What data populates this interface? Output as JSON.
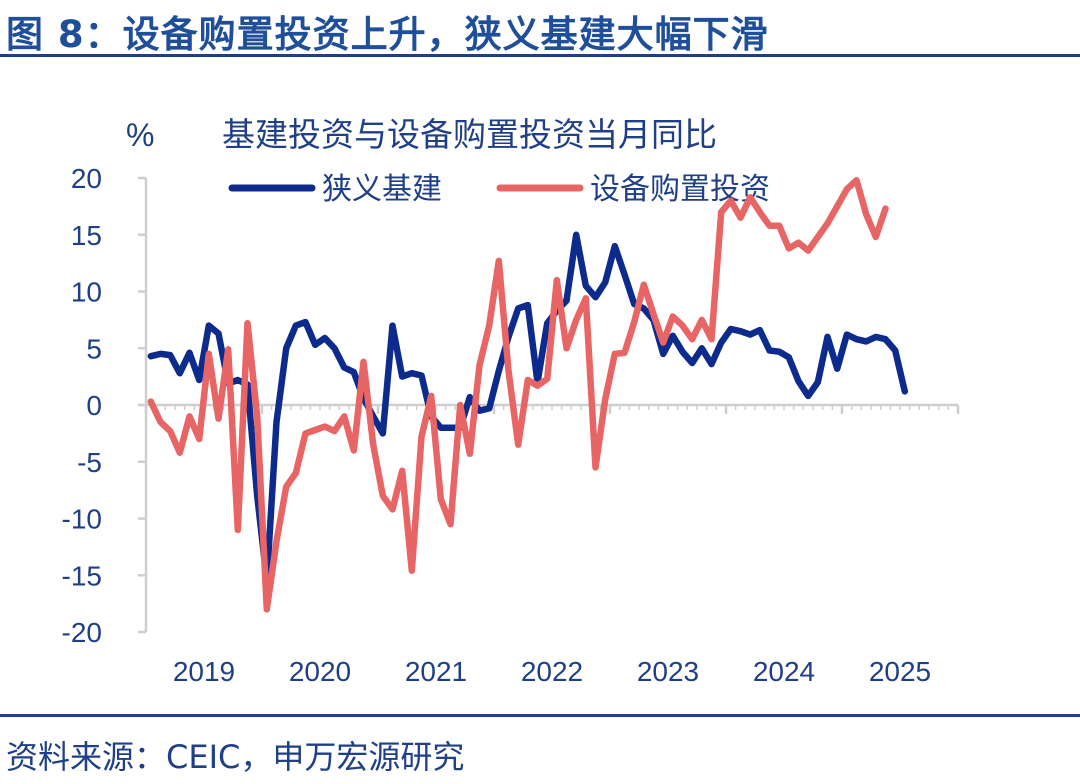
{
  "figure": {
    "title": "图 8：设备购置投资上升，狭义基建大幅下滑",
    "source": "资料来源：CEIC，申万宏源研究"
  },
  "chart_data": {
    "type": "line",
    "title": "基建投资与设备购置投资当月同比",
    "ylabel": "%",
    "xlabel": "",
    "ylim": [
      -20,
      20
    ],
    "yticks": [
      "20",
      "15",
      "10",
      "5",
      "0",
      "-5",
      "-10",
      "-15",
      "-20"
    ],
    "xticks": [
      "2019",
      "2020",
      "2021",
      "2022",
      "2023",
      "2024",
      "2025"
    ],
    "legend_position": "top",
    "grid": false,
    "colors": {
      "infra": "#0c2b8c",
      "equipment": "#e86565",
      "axis": "#cfcfcf",
      "text": "#1f3f86"
    },
    "series": [
      {
        "name": "狭义基建",
        "color": "#0c2b8c",
        "points": [
          [
            "2019-01",
            4.3
          ],
          [
            "2019-02",
            4.5
          ],
          [
            "2019-03",
            4.4
          ],
          [
            "2019-04",
            2.8
          ],
          [
            "2019-05",
            4.6
          ],
          [
            "2019-06",
            2.2
          ],
          [
            "2019-07",
            7.0
          ],
          [
            "2019-08",
            6.3
          ],
          [
            "2019-09",
            1.9
          ],
          [
            "2019-10",
            2.2
          ],
          [
            "2019-11",
            1.8
          ],
          [
            "2019-12",
            -8.0
          ],
          [
            "2020-01",
            -15.5
          ],
          [
            "2020-02",
            -1.5
          ],
          [
            "2020-03",
            5.0
          ],
          [
            "2020-04",
            7.0
          ],
          [
            "2020-05",
            7.3
          ],
          [
            "2020-06",
            5.3
          ],
          [
            "2020-07",
            5.9
          ],
          [
            "2020-08",
            5.0
          ],
          [
            "2020-09",
            3.3
          ],
          [
            "2020-10",
            2.9
          ],
          [
            "2020-11",
            0.6
          ],
          [
            "2020-12",
            -1.0
          ],
          [
            "2021-01",
            -2.5
          ],
          [
            "2021-02",
            7.0
          ],
          [
            "2021-03",
            2.5
          ],
          [
            "2021-04",
            2.8
          ],
          [
            "2021-05",
            2.6
          ],
          [
            "2021-06",
            -1.0
          ],
          [
            "2021-07",
            -2.0
          ],
          [
            "2021-08",
            -2.0
          ],
          [
            "2021-09",
            -2.0
          ],
          [
            "2021-10",
            0.7
          ],
          [
            "2021-11",
            -0.5
          ],
          [
            "2021-12",
            -0.3
          ],
          [
            "2022-01",
            3.0
          ],
          [
            "2022-02",
            6.0
          ],
          [
            "2022-03",
            8.5
          ],
          [
            "2022-04",
            8.8
          ],
          [
            "2022-05",
            2.0
          ],
          [
            "2022-06",
            7.2
          ],
          [
            "2022-07",
            8.3
          ],
          [
            "2022-08",
            9.2
          ],
          [
            "2022-09",
            15.0
          ],
          [
            "2022-10",
            10.5
          ],
          [
            "2022-11",
            9.5
          ],
          [
            "2022-12",
            10.8
          ],
          [
            "2023-01",
            14.0
          ],
          [
            "2023-02",
            11.5
          ],
          [
            "2023-03",
            8.9
          ],
          [
            "2023-04",
            8.5
          ],
          [
            "2023-05",
            7.5
          ],
          [
            "2023-06",
            4.5
          ],
          [
            "2023-07",
            6.1
          ],
          [
            "2023-08",
            4.7
          ],
          [
            "2023-09",
            3.7
          ],
          [
            "2023-10",
            5.0
          ],
          [
            "2023-11",
            3.6
          ],
          [
            "2023-12",
            5.5
          ],
          [
            "2024-01",
            6.7
          ],
          [
            "2024-02",
            6.5
          ],
          [
            "2024-03",
            6.2
          ],
          [
            "2024-04",
            6.6
          ],
          [
            "2024-05",
            4.8
          ],
          [
            "2024-06",
            4.7
          ],
          [
            "2024-07",
            4.2
          ],
          [
            "2024-08",
            2.1
          ],
          [
            "2024-09",
            0.8
          ],
          [
            "2024-10",
            2.0
          ],
          [
            "2024-11",
            6.0
          ],
          [
            "2024-12",
            3.2
          ],
          [
            "2025-01",
            6.2
          ],
          [
            "2025-02",
            5.8
          ],
          [
            "2025-03",
            5.6
          ],
          [
            "2025-04",
            6.0
          ],
          [
            "2025-05",
            5.8
          ],
          [
            "2025-06",
            4.8
          ],
          [
            "2025-07",
            1.2
          ]
        ]
      },
      {
        "name": "设备购置投资",
        "color": "#e86565",
        "points": [
          [
            "2019-01",
            0.3
          ],
          [
            "2019-02",
            -1.5
          ],
          [
            "2019-03",
            -2.3
          ],
          [
            "2019-04",
            -4.2
          ],
          [
            "2019-05",
            -1.0
          ],
          [
            "2019-06",
            -3.0
          ],
          [
            "2019-07",
            4.5
          ],
          [
            "2019-08",
            -1.2
          ],
          [
            "2019-09",
            4.9
          ],
          [
            "2019-10",
            -11.0
          ],
          [
            "2019-11",
            7.2
          ],
          [
            "2019-12",
            -1.0
          ],
          [
            "2020-01",
            -18.0
          ],
          [
            "2020-02",
            -12.0
          ],
          [
            "2020-03",
            -7.2
          ],
          [
            "2020-04",
            -6.0
          ],
          [
            "2020-05",
            -2.5
          ],
          [
            "2020-06",
            -2.2
          ],
          [
            "2020-07",
            -1.9
          ],
          [
            "2020-08",
            -2.3
          ],
          [
            "2020-09",
            -1.0
          ],
          [
            "2020-10",
            -4.0
          ],
          [
            "2020-11",
            3.8
          ],
          [
            "2020-12",
            -3.5
          ],
          [
            "2021-01",
            -8.0
          ],
          [
            "2021-02",
            -9.2
          ],
          [
            "2021-03",
            -5.8
          ],
          [
            "2021-04",
            -14.6
          ],
          [
            "2021-05",
            -2.8
          ],
          [
            "2021-06",
            0.8
          ],
          [
            "2021-07",
            -8.3
          ],
          [
            "2021-08",
            -10.5
          ],
          [
            "2021-09",
            0.0
          ],
          [
            "2021-10",
            -4.3
          ],
          [
            "2021-11",
            3.5
          ],
          [
            "2021-12",
            7.0
          ],
          [
            "2022-01",
            12.7
          ],
          [
            "2022-02",
            3.0
          ],
          [
            "2022-03",
            -3.5
          ],
          [
            "2022-04",
            2.2
          ],
          [
            "2022-05",
            1.7
          ],
          [
            "2022-06",
            2.3
          ],
          [
            "2022-07",
            11.0
          ],
          [
            "2022-08",
            5.0
          ],
          [
            "2022-09",
            7.5
          ],
          [
            "2022-10",
            9.4
          ],
          [
            "2022-11",
            -5.5
          ],
          [
            "2022-12",
            0.5
          ],
          [
            "2023-01",
            4.5
          ],
          [
            "2023-02",
            4.6
          ],
          [
            "2023-03",
            7.3
          ],
          [
            "2023-04",
            10.6
          ],
          [
            "2023-05",
            8.0
          ],
          [
            "2023-06",
            5.5
          ],
          [
            "2023-07",
            7.8
          ],
          [
            "2023-08",
            7.0
          ],
          [
            "2023-09",
            5.8
          ],
          [
            "2023-10",
            7.5
          ],
          [
            "2023-11",
            5.8
          ],
          [
            "2023-12",
            17.0
          ],
          [
            "2024-01",
            18.0
          ],
          [
            "2024-02",
            16.5
          ],
          [
            "2024-03",
            18.3
          ],
          [
            "2024-04",
            17.0
          ],
          [
            "2024-05",
            15.8
          ],
          [
            "2024-06",
            15.8
          ],
          [
            "2024-07",
            13.8
          ],
          [
            "2024-08",
            14.3
          ],
          [
            "2024-09",
            13.6
          ],
          [
            "2024-10",
            14.8
          ],
          [
            "2024-11",
            16.0
          ],
          [
            "2024-12",
            17.5
          ],
          [
            "2025-01",
            19.0
          ],
          [
            "2025-02",
            19.8
          ],
          [
            "2025-03",
            16.8
          ],
          [
            "2025-04",
            14.8
          ],
          [
            "2025-05",
            17.3
          ]
        ]
      }
    ]
  }
}
